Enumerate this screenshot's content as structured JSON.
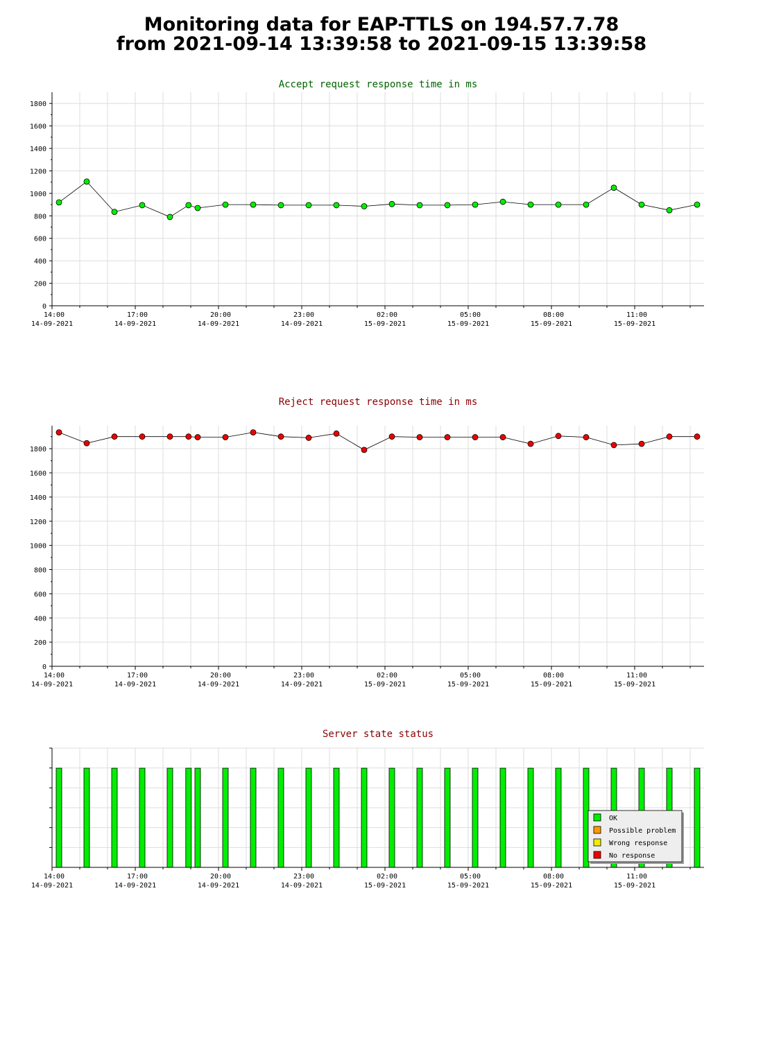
{
  "page": {
    "title_line1": "Monitoring data for EAP-TTLS on 194.57.7.78",
    "title_line2": "from 2021-09-14 13:39:58 to 2021-09-15 13:39:58"
  },
  "time_axis": {
    "tick_hours": [
      14,
      17,
      20,
      23,
      26,
      29,
      32,
      35
    ],
    "tick_labels": [
      [
        "14:00",
        "14-09-2021"
      ],
      [
        "17:00",
        "14-09-2021"
      ],
      [
        "20:00",
        "14-09-2021"
      ],
      [
        "23:00",
        "14-09-2021"
      ],
      [
        "02:00",
        "15-09-2021"
      ],
      [
        "05:00",
        "15-09-2021"
      ],
      [
        "08:00",
        "15-09-2021"
      ],
      [
        "11:00",
        "15-09-2021"
      ]
    ]
  },
  "chart_data": [
    {
      "type": "line",
      "title": "Accept request response time in ms",
      "title_color": "#006400",
      "x_unit": "hours since 2021-09-14 00:00",
      "xlim": [
        14,
        37.5
      ],
      "ylim": [
        0,
        1900
      ],
      "y_ticks": [
        0,
        200,
        400,
        600,
        800,
        1000,
        1200,
        1400,
        1600,
        1800
      ],
      "marker_color": "#00ee00",
      "grid": true,
      "x": [
        14.25,
        15.25,
        16.25,
        17.25,
        18.25,
        18.92,
        19.25,
        20.25,
        21.25,
        22.25,
        23.25,
        24.25,
        25.25,
        26.25,
        27.25,
        28.25,
        29.25,
        30.25,
        31.25,
        32.25,
        33.25,
        34.25,
        35.25,
        36.25,
        37.25
      ],
      "y": [
        920,
        1105,
        835,
        895,
        790,
        895,
        870,
        900,
        900,
        895,
        895,
        895,
        885,
        905,
        895,
        895,
        900,
        925,
        900,
        900,
        900,
        1050,
        900,
        850,
        900
      ]
    },
    {
      "type": "line",
      "title": "Reject request response time in ms",
      "title_color": "#8b0000",
      "x_unit": "hours since 2021-09-14 00:00",
      "xlim": [
        14,
        37.5
      ],
      "ylim": [
        0,
        1990
      ],
      "y_ticks": [
        0,
        200,
        400,
        600,
        800,
        1000,
        1200,
        1400,
        1600,
        1800
      ],
      "marker_color": "#ee0000",
      "grid": true,
      "x": [
        14.25,
        15.25,
        16.25,
        17.25,
        18.25,
        18.92,
        19.25,
        20.25,
        21.25,
        22.25,
        23.25,
        24.25,
        25.25,
        26.25,
        27.25,
        28.25,
        29.25,
        30.25,
        31.25,
        32.25,
        33.25,
        34.25,
        35.25,
        36.25,
        37.25
      ],
      "y": [
        1935,
        1845,
        1900,
        1900,
        1900,
        1900,
        1895,
        1895,
        1935,
        1900,
        1890,
        1925,
        1790,
        1900,
        1895,
        1895,
        1895,
        1895,
        1840,
        1905,
        1895,
        1830,
        1840,
        1900,
        1900
      ]
    },
    {
      "type": "bar",
      "title": "Server state status",
      "title_color": "#8b0000",
      "x_unit": "hours since 2021-09-14 00:00",
      "xlim": [
        14,
        37.5
      ],
      "x": [
        14.25,
        15.25,
        16.25,
        17.25,
        18.25,
        18.92,
        19.25,
        20.25,
        21.25,
        22.25,
        23.25,
        24.25,
        25.25,
        26.25,
        27.25,
        28.25,
        29.25,
        30.25,
        31.25,
        32.25,
        33.25,
        34.25,
        35.25,
        36.25,
        37.25
      ],
      "status": [
        "OK",
        "OK",
        "OK",
        "OK",
        "OK",
        "OK",
        "OK",
        "OK",
        "OK",
        "OK",
        "OK",
        "OK",
        "OK",
        "OK",
        "OK",
        "OK",
        "OK",
        "OK",
        "OK",
        "OK",
        "OK",
        "OK",
        "OK",
        "OK",
        "OK"
      ],
      "legend": [
        {
          "label": "OK",
          "color": "#00ee00"
        },
        {
          "label": "Possible problem",
          "color": "#ff9900"
        },
        {
          "label": "Wrong response",
          "color": "#eeee00"
        },
        {
          "label": "No response",
          "color": "#ee0000"
        }
      ],
      "legend_position": "bottom-right"
    }
  ]
}
